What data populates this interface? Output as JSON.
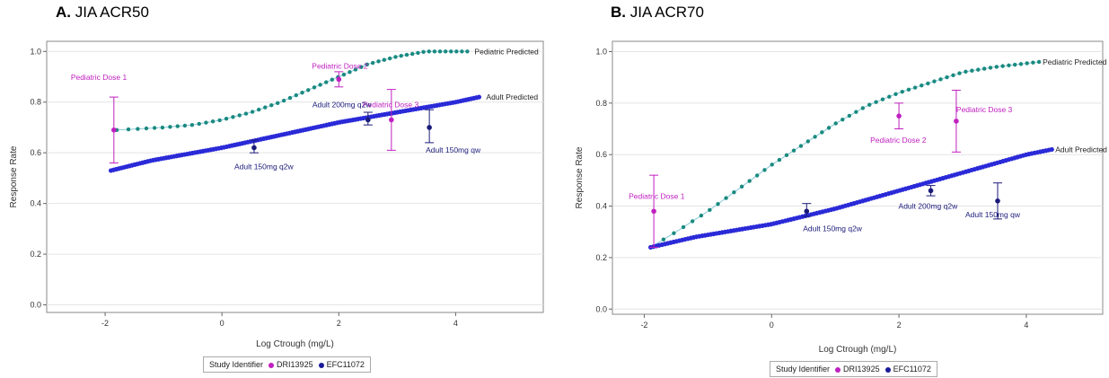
{
  "panels": {
    "a": {
      "letter": "A.",
      "rest": "JIA ACR50"
    },
    "b": {
      "letter": "B.",
      "rest": "JIA ACR70"
    }
  },
  "legend": {
    "title": "Study Identifier",
    "items": [
      {
        "label": "DRI13925",
        "color": "#c020c0"
      },
      {
        "label": "EFC11072",
        "color": "#1a1a9a"
      }
    ]
  },
  "colors": {
    "pediatric_curve": "#1a8a80",
    "adult_curve": "#2a2ad8",
    "pediatric_obs": "#c020c0",
    "adult_obs": "#1a1a7a",
    "line": "#88c8d8"
  },
  "chart_data": [
    {
      "type": "scatter",
      "title": "",
      "xlabel": "Log Ctrough (mg/L)",
      "ylabel": "Response Rate",
      "xlim": [
        -3,
        5.5
      ],
      "ylim": [
        -0.03,
        1.04
      ],
      "xticks": [
        -2,
        0,
        2,
        4
      ],
      "yticks": [
        0.0,
        0.2,
        0.4,
        0.6,
        0.8,
        1.0
      ],
      "grid": true,
      "series": [
        {
          "name": "Pediatric Predicted",
          "kind": "curve",
          "x_start": -1.8,
          "x_end": 4.2,
          "x": [
            -1.8,
            -1.0,
            -0.5,
            0.0,
            0.5,
            1.0,
            1.5,
            2.0,
            2.5,
            3.0,
            3.5,
            4.2
          ],
          "y": [
            0.69,
            0.7,
            0.71,
            0.73,
            0.76,
            0.8,
            0.85,
            0.9,
            0.95,
            0.98,
            1.0,
            1.0
          ]
        },
        {
          "name": "Adult Predicted",
          "kind": "curve",
          "x_start": -1.9,
          "x_end": 4.4,
          "x": [
            -1.9,
            -1.2,
            0.0,
            1.0,
            2.0,
            3.0,
            4.0,
            4.4
          ],
          "y": [
            0.53,
            0.57,
            0.62,
            0.67,
            0.72,
            0.76,
            0.8,
            0.82
          ]
        }
      ],
      "points": [
        {
          "label": "Pediatric Dose 1",
          "group": "DRI13925",
          "x": -1.85,
          "y": 0.69,
          "lo": 0.56,
          "hi": 0.82
        },
        {
          "label": "Pediatric Dose 2",
          "group": "DRI13925",
          "x": 2.0,
          "y": 0.89,
          "lo": 0.86,
          "hi": 0.92
        },
        {
          "label": "Pediatric Dose 3",
          "group": "DRI13925",
          "x": 2.9,
          "y": 0.73,
          "lo": 0.61,
          "hi": 0.85
        },
        {
          "label": "Adult 150mg q2w",
          "group": "EFC11072",
          "x": 0.55,
          "y": 0.62,
          "lo": 0.6,
          "hi": 0.65
        },
        {
          "label": "Adult 200mg q2w",
          "group": "EFC11072",
          "x": 2.5,
          "y": 0.73,
          "lo": 0.71,
          "hi": 0.76
        },
        {
          "label": "Adult 150mg qw",
          "group": "EFC11072",
          "x": 3.55,
          "y": 0.7,
          "lo": 0.64,
          "hi": 0.77
        }
      ]
    },
    {
      "type": "scatter",
      "title": "",
      "xlabel": "Log Ctrough (mg/L)",
      "ylabel": "Response Rate",
      "xlim": [
        -2.5,
        5.2
      ],
      "ylim": [
        -0.02,
        1.04
      ],
      "xticks": [
        -2,
        0,
        2,
        4
      ],
      "yticks": [
        0.0,
        0.2,
        0.4,
        0.6,
        0.8,
        1.0
      ],
      "grid": true,
      "series": [
        {
          "name": "Pediatric Predicted",
          "kind": "curve",
          "x_start": -1.9,
          "x_end": 4.2,
          "x": [
            -1.9,
            -1.5,
            -1.0,
            -0.5,
            0.0,
            0.5,
            1.0,
            1.5,
            2.0,
            2.5,
            3.0,
            3.5,
            4.2
          ],
          "y": [
            0.24,
            0.3,
            0.38,
            0.47,
            0.56,
            0.64,
            0.72,
            0.79,
            0.84,
            0.88,
            0.92,
            0.94,
            0.96
          ]
        },
        {
          "name": "Adult Predicted",
          "kind": "curve",
          "x_start": -1.9,
          "x_end": 4.4,
          "x": [
            -1.9,
            -1.2,
            0.0,
            1.0,
            2.0,
            3.0,
            4.0,
            4.4
          ],
          "y": [
            0.24,
            0.28,
            0.33,
            0.39,
            0.46,
            0.53,
            0.6,
            0.62
          ]
        }
      ],
      "points": [
        {
          "label": "Pediatric Dose 1",
          "group": "DRI13925",
          "x": -1.85,
          "y": 0.38,
          "lo": 0.24,
          "hi": 0.52
        },
        {
          "label": "Pediatric Dose 2",
          "group": "DRI13925",
          "x": 2.0,
          "y": 0.75,
          "lo": 0.7,
          "hi": 0.8
        },
        {
          "label": "Pediatric Dose 3",
          "group": "DRI13925",
          "x": 2.9,
          "y": 0.73,
          "lo": 0.61,
          "hi": 0.85
        },
        {
          "label": "Adult 150mg q2w",
          "group": "EFC11072",
          "x": 0.55,
          "y": 0.38,
          "lo": 0.36,
          "hi": 0.41
        },
        {
          "label": "Adult 200mg q2w",
          "group": "EFC11072",
          "x": 2.5,
          "y": 0.46,
          "lo": 0.44,
          "hi": 0.48
        },
        {
          "label": "Adult 150mg qw",
          "group": "EFC11072",
          "x": 3.55,
          "y": 0.42,
          "lo": 0.35,
          "hi": 0.49
        }
      ]
    }
  ]
}
